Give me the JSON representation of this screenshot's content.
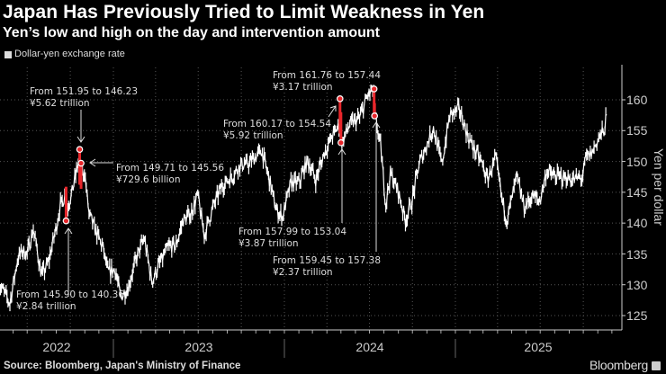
{
  "header": {
    "title": "Japan Has Previously Tried to Limit Weakness in Yen",
    "subtitle": "Yen’s low and high on the day and intervention amount",
    "legend_label": "Dollar-yen exchange rate"
  },
  "footer": {
    "source": "Source: Bloomberg, Japan's Ministry of Finance",
    "brand": "Bloomberg"
  },
  "chart_data": {
    "type": "line",
    "ylabel": "Yen per dollar",
    "ylim": [
      123,
      164
    ],
    "yticks": [
      125,
      130,
      135,
      140,
      145,
      150,
      155,
      160
    ],
    "ytick_labels": [
      "125",
      "130",
      "135",
      "140",
      "145",
      "150",
      "155",
      "160"
    ],
    "xtick_labels": [
      "2022",
      "2023",
      "2024",
      "2025"
    ],
    "grid": true,
    "legend_position": "top-left",
    "colors": {
      "line": "#ffffff",
      "intervention": "#e8262b",
      "grid": "#555555",
      "background": "#000000"
    },
    "series": [
      {
        "name": "Dollar-yen exchange rate",
        "points": [
          [
            "2022-05-01",
            130.0
          ],
          [
            "2022-05-15",
            128.5
          ],
          [
            "2022-05-25",
            127.0
          ],
          [
            "2022-06-10",
            134.0
          ],
          [
            "2022-06-20",
            135.5
          ],
          [
            "2022-07-01",
            135.0
          ],
          [
            "2022-07-14",
            139.0
          ],
          [
            "2022-08-01",
            131.5
          ],
          [
            "2022-08-15",
            133.5
          ],
          [
            "2022-08-31",
            139.0
          ],
          [
            "2022-09-10",
            143.0
          ],
          [
            "2022-09-21",
            144.5
          ],
          [
            "2022-09-22",
            142.0
          ],
          [
            "2022-10-05",
            145.0
          ],
          [
            "2022-10-20",
            150.5
          ],
          [
            "2022-10-21",
            147.5
          ],
          [
            "2022-10-31",
            148.5
          ],
          [
            "2022-11-10",
            141.5
          ],
          [
            "2022-11-25",
            138.5
          ],
          [
            "2022-12-10",
            136.0
          ],
          [
            "2022-12-20",
            132.0
          ],
          [
            "2023-01-05",
            132.5
          ],
          [
            "2023-01-16",
            128.0
          ],
          [
            "2023-02-01",
            129.5
          ],
          [
            "2023-02-20",
            134.5
          ],
          [
            "2023-03-08",
            137.5
          ],
          [
            "2023-03-24",
            130.5
          ],
          [
            "2023-04-10",
            133.5
          ],
          [
            "2023-04-28",
            136.0
          ],
          [
            "2023-05-15",
            136.5
          ],
          [
            "2023-05-30",
            140.5
          ],
          [
            "2023-06-15",
            141.5
          ],
          [
            "2023-06-30",
            144.5
          ],
          [
            "2023-07-14",
            138.0
          ],
          [
            "2023-08-01",
            142.5
          ],
          [
            "2023-08-20",
            146.0
          ],
          [
            "2023-09-10",
            147.5
          ],
          [
            "2023-09-30",
            149.5
          ],
          [
            "2023-10-15",
            149.5
          ],
          [
            "2023-11-13",
            151.8
          ],
          [
            "2023-11-30",
            147.0
          ],
          [
            "2023-12-15",
            142.0
          ],
          [
            "2023-12-28",
            141.0
          ],
          [
            "2024-01-15",
            146.5
          ],
          [
            "2024-02-01",
            146.5
          ],
          [
            "2024-02-20",
            150.2
          ],
          [
            "2024-03-08",
            147.0
          ],
          [
            "2024-03-27",
            151.5
          ],
          [
            "2024-04-15",
            154.5
          ],
          [
            "2024-04-29",
            156.0
          ],
          [
            "2024-05-03",
            153.0
          ],
          [
            "2024-05-20",
            156.0
          ],
          [
            "2024-06-10",
            157.0
          ],
          [
            "2024-06-28",
            160.8
          ],
          [
            "2024-07-10",
            161.5
          ],
          [
            "2024-07-12",
            157.8
          ],
          [
            "2024-07-25",
            152.5
          ],
          [
            "2024-08-05",
            143.0
          ],
          [
            "2024-08-15",
            148.0
          ],
          [
            "2024-08-30",
            145.5
          ],
          [
            "2024-09-16",
            140.5
          ],
          [
            "2024-09-30",
            143.5
          ],
          [
            "2024-10-15",
            149.5
          ],
          [
            "2024-10-31",
            152.5
          ],
          [
            "2024-11-15",
            155.5
          ],
          [
            "2024-12-03",
            149.5
          ],
          [
            "2024-12-20",
            157.5
          ],
          [
            "2025-01-10",
            158.5
          ],
          [
            "2025-01-28",
            154.0
          ],
          [
            "2025-02-10",
            152.0
          ],
          [
            "2025-02-28",
            149.5
          ],
          [
            "2025-03-10",
            147.0
          ],
          [
            "2025-03-28",
            150.5
          ],
          [
            "2025-04-10",
            144.0
          ],
          [
            "2025-04-21",
            140.5
          ],
          [
            "2025-05-12",
            147.5
          ],
          [
            "2025-05-28",
            142.5
          ],
          [
            "2025-06-15",
            144.5
          ],
          [
            "2025-06-30",
            143.5
          ],
          [
            "2025-07-15",
            148.5
          ],
          [
            "2025-08-01",
            147.5
          ],
          [
            "2025-08-20",
            147.5
          ],
          [
            "2025-09-10",
            147.0
          ],
          [
            "2025-09-30",
            147.5
          ],
          [
            "2025-10-06",
            150.5
          ],
          [
            "2025-10-20",
            151.5
          ],
          [
            "2025-11-01",
            153.5
          ],
          [
            "2025-11-14",
            155.0
          ],
          [
            "2025-11-20",
            157.5
          ]
        ]
      }
    ],
    "interventions": [
      {
        "date": "2022-09-22",
        "high": 145.9,
        "low": 140.36,
        "label": "From 145.90 to 140.36",
        "amount": "¥2.84 trillion",
        "marker": "low"
      },
      {
        "date": "2022-10-21",
        "high": 151.95,
        "low": 146.23,
        "label": "From 151.95 to 146.23",
        "amount": "¥5.62 trillion",
        "marker": "high"
      },
      {
        "date": "2022-10-24",
        "high": 149.71,
        "low": 145.56,
        "label": "From 149.71 to 145.56",
        "amount": "¥729.6 billion",
        "marker": "high"
      },
      {
        "date": "2024-04-29",
        "high": 160.17,
        "low": 154.54,
        "label": "From 160.17 to 154.54",
        "amount": "¥5.92 trillion",
        "marker": "high"
      },
      {
        "date": "2024-05-01",
        "high": 157.99,
        "low": 153.04,
        "label": "From 157.99 to 153.04",
        "amount": "¥3.87 trillion",
        "marker": "low"
      },
      {
        "date": "2024-07-11",
        "high": 161.76,
        "low": 157.44,
        "label": "From 161.76 to 157.44",
        "amount": "¥3.17 trillion",
        "marker": "high"
      },
      {
        "date": "2024-07-12",
        "high": 159.45,
        "low": 157.38,
        "label": "From 159.45 to 157.38",
        "amount": "¥2.37 trillion",
        "marker": "low"
      }
    ]
  }
}
